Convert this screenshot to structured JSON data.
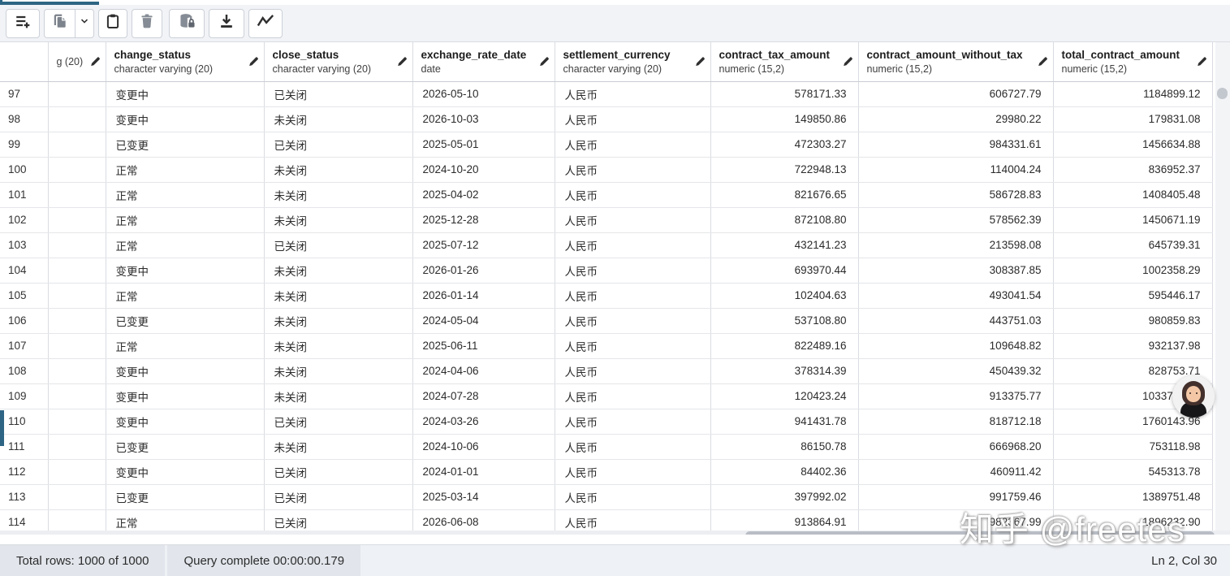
{
  "toolbar": {
    "buttons": [
      {
        "icon": "add-row-icon",
        "enabled": true
      },
      {
        "icon": "copy-icon",
        "enabled": false
      },
      {
        "icon": "chevron-down-icon",
        "enabled": true
      },
      {
        "icon": "paste-icon",
        "enabled": true
      },
      {
        "icon": "delete-row-icon",
        "enabled": false
      },
      {
        "icon": "save-data-changes-icon",
        "enabled": false
      },
      {
        "icon": "download-icon",
        "enabled": true
      },
      {
        "icon": "graph-visualiser-icon",
        "enabled": true
      }
    ]
  },
  "grid": {
    "columns": [
      {
        "name": "",
        "type": "g (20)"
      },
      {
        "name": "change_status",
        "type": "character varying (20)"
      },
      {
        "name": "close_status",
        "type": "character varying (20)"
      },
      {
        "name": "exchange_rate_date",
        "type": "date"
      },
      {
        "name": "settlement_currency",
        "type": "character varying (20)"
      },
      {
        "name": "contract_tax_amount",
        "type": "numeric (15,2)"
      },
      {
        "name": "contract_amount_without_tax",
        "type": "numeric (15,2)"
      },
      {
        "name": "total_contract_amount",
        "type": "numeric (15,2)"
      }
    ],
    "rows": [
      {
        "num": "97",
        "cells": [
          "",
          "变更中",
          "已关闭",
          "2026-05-10",
          "人民币",
          "578171.33",
          "606727.79",
          "1184899.12"
        ]
      },
      {
        "num": "98",
        "cells": [
          "",
          "变更中",
          "未关闭",
          "2026-10-03",
          "人民币",
          "149850.86",
          "29980.22",
          "179831.08"
        ]
      },
      {
        "num": "99",
        "cells": [
          "",
          "已变更",
          "已关闭",
          "2025-05-01",
          "人民币",
          "472303.27",
          "984331.61",
          "1456634.88"
        ]
      },
      {
        "num": "100",
        "cells": [
          "",
          "正常",
          "未关闭",
          "2024-10-20",
          "人民币",
          "722948.13",
          "114004.24",
          "836952.37"
        ]
      },
      {
        "num": "101",
        "cells": [
          "",
          "正常",
          "未关闭",
          "2025-04-02",
          "人民币",
          "821676.65",
          "586728.83",
          "1408405.48"
        ]
      },
      {
        "num": "102",
        "cells": [
          "",
          "正常",
          "未关闭",
          "2025-12-28",
          "人民币",
          "872108.80",
          "578562.39",
          "1450671.19"
        ]
      },
      {
        "num": "103",
        "cells": [
          "",
          "正常",
          "已关闭",
          "2025-07-12",
          "人民币",
          "432141.23",
          "213598.08",
          "645739.31"
        ]
      },
      {
        "num": "104",
        "cells": [
          "",
          "变更中",
          "未关闭",
          "2026-01-26",
          "人民币",
          "693970.44",
          "308387.85",
          "1002358.29"
        ]
      },
      {
        "num": "105",
        "cells": [
          "",
          "正常",
          "未关闭",
          "2026-01-14",
          "人民币",
          "102404.63",
          "493041.54",
          "595446.17"
        ]
      },
      {
        "num": "106",
        "cells": [
          "",
          "已变更",
          "未关闭",
          "2024-05-04",
          "人民币",
          "537108.80",
          "443751.03",
          "980859.83"
        ]
      },
      {
        "num": "107",
        "cells": [
          "",
          "正常",
          "未关闭",
          "2025-06-11",
          "人民币",
          "822489.16",
          "109648.82",
          "932137.98"
        ]
      },
      {
        "num": "108",
        "cells": [
          "",
          "变更中",
          "未关闭",
          "2024-04-06",
          "人民币",
          "378314.39",
          "450439.32",
          "828753.71"
        ]
      },
      {
        "num": "109",
        "cells": [
          "",
          "变更中",
          "未关闭",
          "2024-07-28",
          "人民币",
          "120423.24",
          "913375.77",
          "1033799.01"
        ]
      },
      {
        "num": "110",
        "cells": [
          "",
          "变更中",
          "已关闭",
          "2024-03-26",
          "人民币",
          "941431.78",
          "818712.18",
          "1760143.96"
        ]
      },
      {
        "num": "111",
        "cells": [
          "",
          "已变更",
          "未关闭",
          "2024-10-06",
          "人民币",
          "86150.78",
          "666968.20",
          "753118.98"
        ]
      },
      {
        "num": "112",
        "cells": [
          "",
          "变更中",
          "已关闭",
          "2024-01-01",
          "人民币",
          "84402.36",
          "460911.42",
          "545313.78"
        ]
      },
      {
        "num": "113",
        "cells": [
          "",
          "已变更",
          "已关闭",
          "2025-03-14",
          "人民币",
          "397992.02",
          "991759.46",
          "1389751.48"
        ]
      },
      {
        "num": "114",
        "cells": [
          "",
          "正常",
          "已关闭",
          "2026-06-08",
          "人民币",
          "913864.91",
          "982367.99",
          "1896232.90"
        ]
      }
    ],
    "selected_row": "110"
  },
  "status_bar": {
    "total_rows": "Total rows: 1000 of 1000",
    "query_complete": "Query complete 00:00:00.179",
    "cursor_position": "Ln 2, Col 30"
  },
  "watermark": "知乎 @freetes",
  "colors": {
    "accent": "#2e6584",
    "toolbar_bg": "#f1f3f7",
    "grid_line": "#d9dce1",
    "status_bg": "#eef1f5",
    "disabled_icon": "#868c95",
    "enabled_icon": "#2f2f2f"
  }
}
